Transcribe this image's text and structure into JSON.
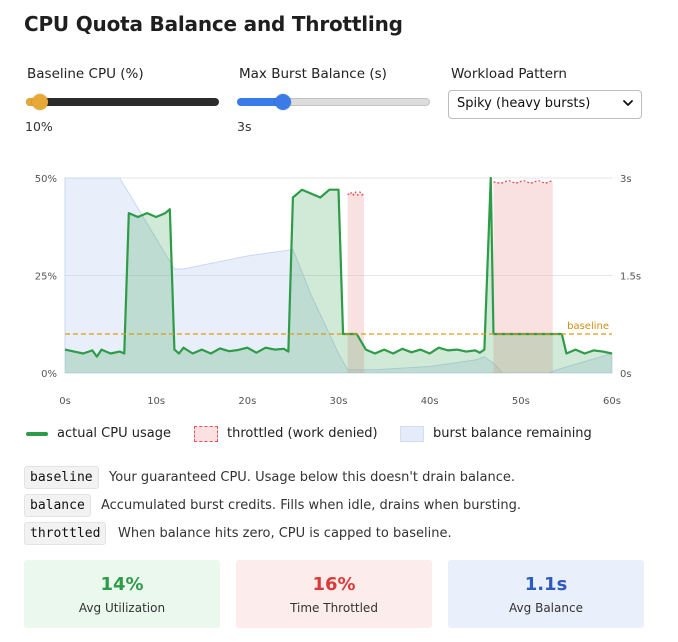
{
  "title": "CPU Quota Balance and Throttling",
  "controls": {
    "baseline": {
      "label": "Baseline CPU (%)",
      "value_text": "10%",
      "fraction": 0.07,
      "color": "#e8a838"
    },
    "burst": {
      "label": "Max Burst Balance (s)",
      "value_text": "3s",
      "fraction": 0.24,
      "color": "#3a7be8"
    },
    "pattern": {
      "label": "Workload Pattern",
      "selected": "Spiky (heavy bursts)"
    }
  },
  "chart_data": {
    "type": "line",
    "xlim": [
      0,
      60
    ],
    "ylim_left": [
      0,
      50
    ],
    "ylim_right": [
      0,
      3
    ],
    "x_ticks": [
      0,
      10,
      20,
      30,
      40,
      50,
      60
    ],
    "x_tick_labels": [
      "0s",
      "10s",
      "20s",
      "30s",
      "40s",
      "50s",
      "60s"
    ],
    "y_left_ticks": [
      0,
      25,
      50
    ],
    "y_left_tick_labels": [
      "0%",
      "25%",
      "50%"
    ],
    "y_right_ticks": [
      0,
      1.5,
      3
    ],
    "y_right_tick_labels": [
      "0s",
      "1.5s",
      "3s"
    ],
    "baseline_value": 10,
    "baseline_label": "baseline",
    "series": [
      {
        "name": "actual CPU usage",
        "color": "#2e9b48",
        "x": [
          0,
          1,
          2,
          3,
          3.5,
          4,
          5,
          6,
          6.5,
          7,
          8,
          9,
          10,
          11,
          11.5,
          12,
          12.5,
          13,
          14,
          15,
          16,
          17,
          18,
          19,
          20,
          21,
          22,
          23,
          24,
          24.5,
          25,
          26,
          27,
          28,
          29,
          30,
          30.5,
          31,
          32,
          33,
          34,
          35,
          36,
          37,
          38,
          39,
          40,
          41,
          42,
          43,
          44,
          45,
          45.5,
          46,
          46.7,
          47,
          48,
          49,
          50,
          51,
          52,
          53,
          54,
          54.5,
          55,
          56,
          57,
          58,
          59,
          60
        ],
        "y": [
          6,
          5.5,
          5,
          5.8,
          4.2,
          6,
          5,
          5.5,
          5,
          41,
          40,
          41,
          40,
          41,
          42,
          6,
          5,
          6.5,
          5,
          6,
          5,
          6.3,
          5.6,
          5.9,
          6.5,
          5.2,
          6.5,
          6,
          6.2,
          5.5,
          45,
          47,
          46,
          45,
          47,
          47,
          10,
          10,
          10,
          6,
          5,
          6,
          5,
          6.2,
          5.3,
          6,
          5,
          6.5,
          5.8,
          6,
          5.5,
          5.8,
          5.2,
          6,
          50,
          10,
          10,
          10,
          10,
          10,
          10,
          10,
          10,
          10,
          5,
          6,
          5,
          5.8,
          5.5,
          5
        ]
      },
      {
        "name": "throttled (work denied)",
        "color": "#e05555",
        "ranges": [
          [
            31,
            32.8,
            46
          ],
          [
            47,
            53.5,
            49
          ]
        ]
      },
      {
        "name": "burst balance remaining",
        "color": "#c9d8f2",
        "x": [
          0,
          6,
          12,
          13,
          20,
          25,
          27,
          30,
          31,
          34,
          40,
          45,
          46,
          47,
          48,
          53,
          54,
          60
        ],
        "y": [
          3,
          3,
          1.6,
          1.6,
          1.8,
          1.9,
          1.2,
          0.3,
          0.05,
          0.05,
          0.1,
          0.2,
          0.25,
          0.15,
          0,
          0,
          0.05,
          0.3
        ]
      }
    ]
  },
  "legend": {
    "cpu": "actual CPU usage",
    "throttled": "throttled (work denied)",
    "balance": "burst balance remaining"
  },
  "definitions": [
    {
      "term": "baseline",
      "text": "Your guaranteed CPU. Usage below this doesn't drain balance."
    },
    {
      "term": "balance",
      "text": "Accumulated burst credits. Fills when idle, drains when bursting."
    },
    {
      "term": "throttled",
      "text": "When balance hits zero, CPU is capped to baseline."
    }
  ],
  "stats": [
    {
      "value": "14%",
      "label": "Avg Utilization",
      "color": "#2e9b48",
      "bg": "#eaf8ee"
    },
    {
      "value": "16%",
      "label": "Time Throttled",
      "color": "#d93a3a",
      "bg": "#fdecec"
    },
    {
      "value": "1.1s",
      "label": "Avg Balance",
      "color": "#2f5bbd",
      "bg": "#eaf0fb"
    }
  ]
}
